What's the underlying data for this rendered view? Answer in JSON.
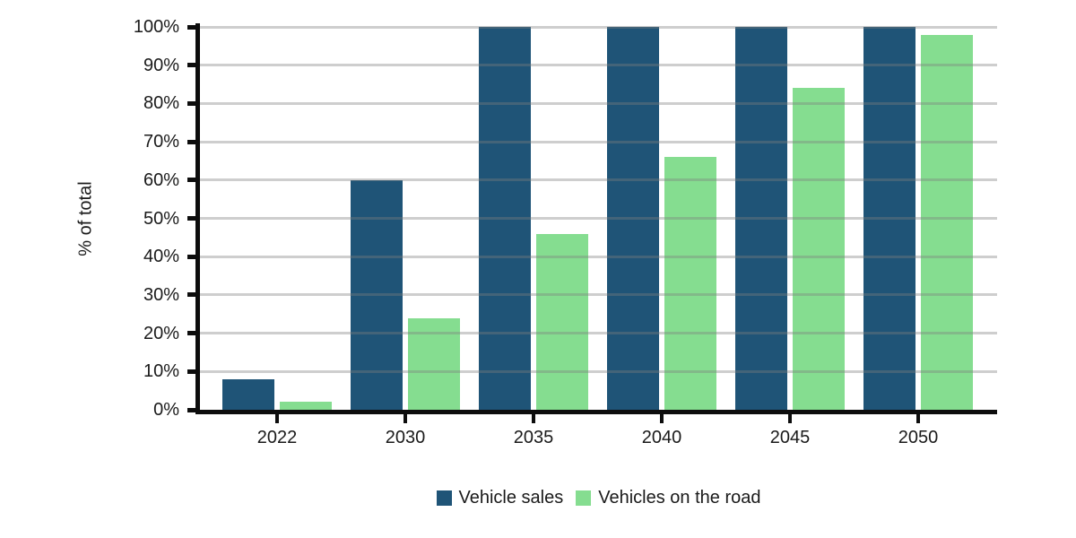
{
  "chart_data": {
    "type": "bar",
    "title": "",
    "categories": [
      "2022",
      "2030",
      "2035",
      "2040",
      "2045",
      "2050"
    ],
    "series": [
      {
        "name": "Vehicle sales",
        "color": "#1F5477",
        "values": [
          8,
          60,
          100,
          100,
          100,
          100
        ]
      },
      {
        "name": "Vehicles on the road",
        "color": "#85DD90",
        "values": [
          2,
          24,
          46,
          66,
          84,
          98
        ]
      }
    ],
    "xlabel": "",
    "ylabel": "% of total",
    "ylim": [
      0,
      100
    ],
    "ytick_step": 10,
    "ytick_suffix": "%",
    "grid": "horizontal",
    "legend_position": "bottom-center",
    "background_color": "#ffffff",
    "axis_color": "#0d0d0d",
    "gridline_color": "#c9c9c9",
    "text_color": "#1a1a1a"
  }
}
